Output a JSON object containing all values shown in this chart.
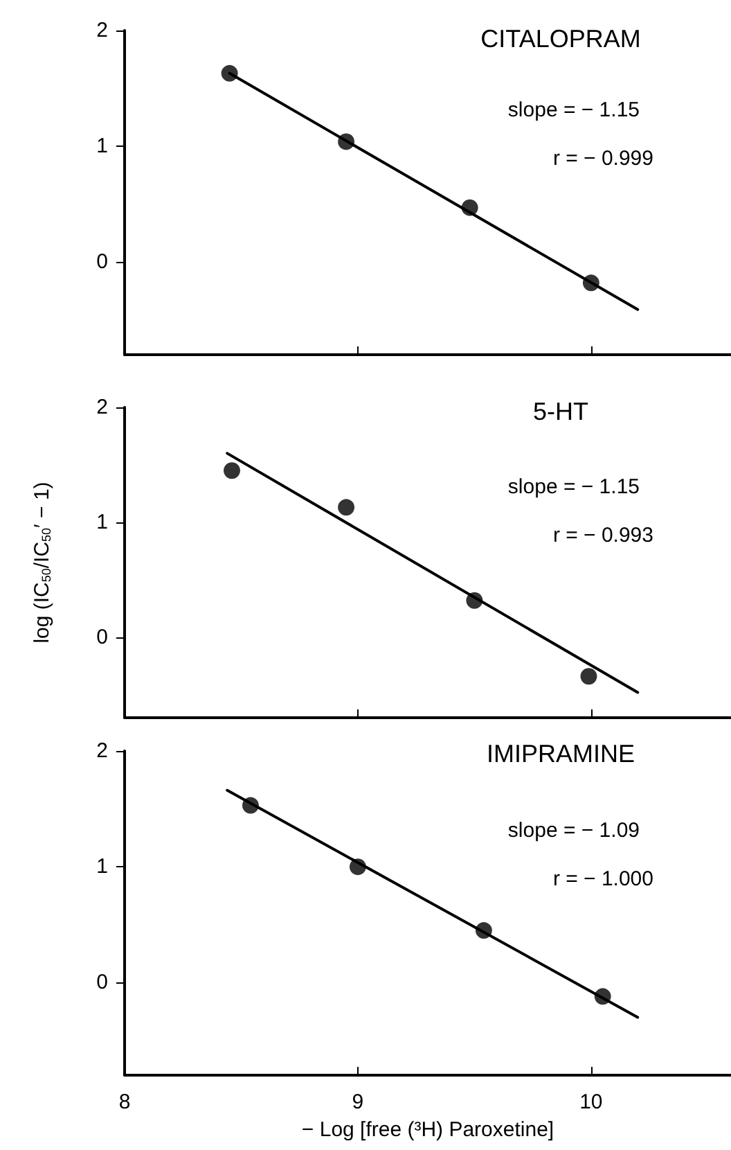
{
  "chart_data": [
    {
      "type": "scatter",
      "title": "CITALOPRAM",
      "annotations": [
        "slope = − 1.15",
        "r = − 0.999"
      ],
      "marker": "circle",
      "tick_labels": "y",
      "xlim": [
        8,
        10.6
      ],
      "xticks": [
        8,
        9,
        10
      ],
      "ylim": [
        -0.8,
        2
      ],
      "yticks": [
        0,
        1,
        2
      ],
      "series": [
        {
          "color": "#000000",
          "x": [
            8.45,
            8.95,
            9.48,
            10.0
          ],
          "values": [
            1.63,
            1.04,
            0.47,
            -0.18
          ]
        },
        {
          "type": "line",
          "marker": "none",
          "color": "#000000",
          "x": [
            8.45,
            10.2
          ],
          "values": [
            1.63,
            -0.41
          ]
        }
      ]
    },
    {
      "type": "scatter",
      "title": "5-HT",
      "ylabel": "log (IC$_{50}$/IC$_{50}$′ − 1)",
      "annotations": [
        "slope = − 1.15",
        "r = − 0.993"
      ],
      "marker": "circle",
      "tick_labels": "y",
      "xlim": [
        8,
        10.6
      ],
      "xticks": [
        8,
        9,
        10
      ],
      "ylim": [
        -0.7,
        2
      ],
      "yticks": [
        0,
        1,
        2
      ],
      "series": [
        {
          "color": "#000000",
          "x": [
            8.46,
            8.95,
            9.5,
            9.99
          ],
          "values": [
            1.45,
            1.13,
            0.32,
            -0.34
          ]
        },
        {
          "type": "line",
          "marker": "none",
          "color": "#000000",
          "x": [
            8.44,
            10.2
          ],
          "values": [
            1.6,
            -0.48
          ]
        }
      ]
    },
    {
      "type": "scatter",
      "title": "IMIPRAMINE",
      "xlabel": "− Log [free (³H) Paroxetine]",
      "annotations": [
        "slope = − 1.09",
        "r = − 1.000"
      ],
      "marker": "circle",
      "xlim": [
        8,
        10.6
      ],
      "xticks": [
        8,
        9,
        10
      ],
      "ylim": [
        -0.8,
        2
      ],
      "yticks": [
        0,
        1,
        2
      ],
      "series": [
        {
          "color": "#000000",
          "x": [
            8.54,
            9.0,
            9.54,
            10.05
          ],
          "values": [
            1.53,
            1.0,
            0.45,
            -0.12
          ]
        },
        {
          "type": "line",
          "marker": "none",
          "color": "#000000",
          "x": [
            8.44,
            10.2
          ],
          "values": [
            1.66,
            -0.3
          ]
        }
      ]
    }
  ]
}
